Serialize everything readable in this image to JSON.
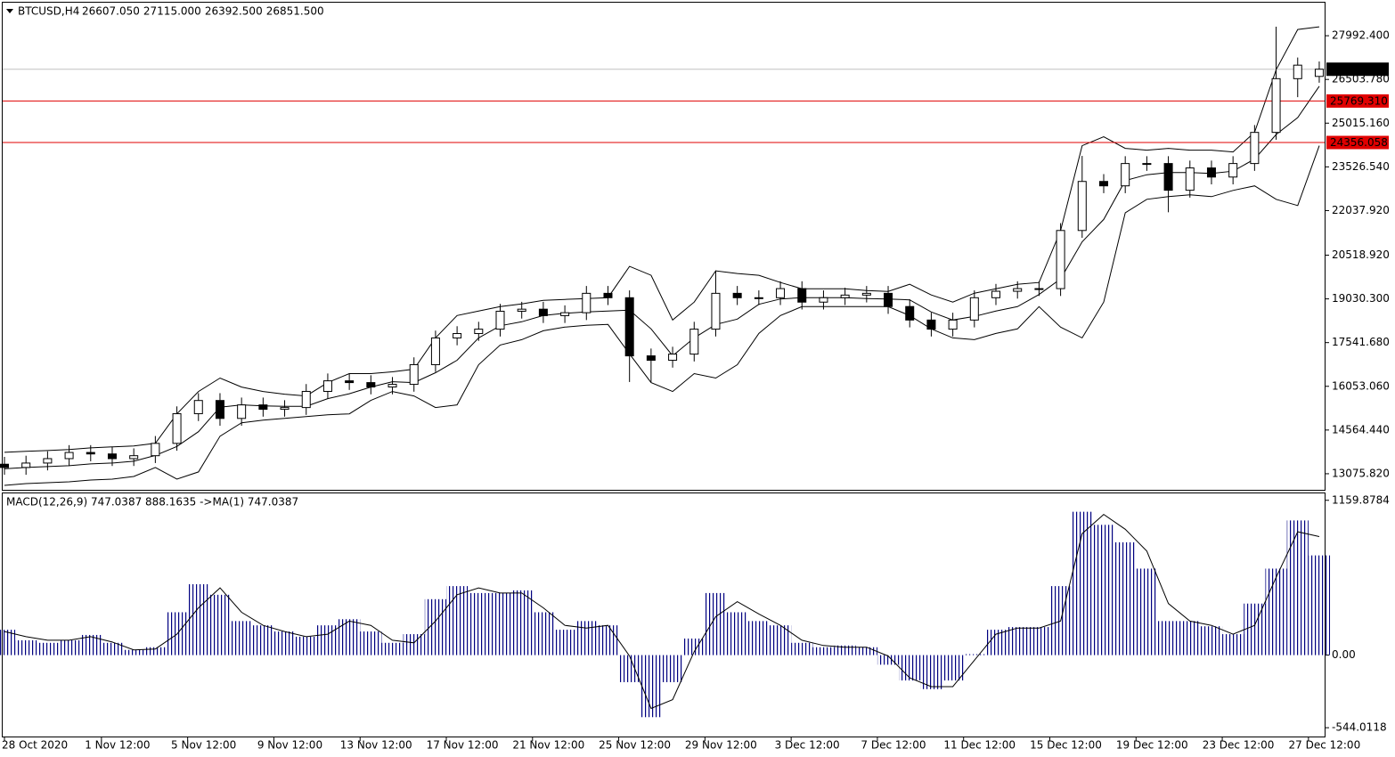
{
  "chart_data": [
    {
      "type": "candlestick",
      "title": "BTCUSD,H4",
      "header_values": [
        "26607.050",
        "27115.000",
        "26392.500",
        "26851.500"
      ],
      "x": [
        0,
        1,
        2,
        3,
        4,
        5,
        6,
        7,
        8,
        9,
        10,
        11,
        12,
        13,
        14,
        15,
        16,
        17,
        18,
        19,
        20,
        21,
        22,
        23,
        24,
        25,
        26,
        27,
        28,
        29,
        30,
        31,
        32,
        33,
        34,
        35,
        36,
        37,
        38,
        39,
        40,
        41,
        42,
        43,
        44,
        45,
        46,
        47,
        48,
        49,
        50,
        51,
        52,
        53,
        54,
        55,
        56,
        57,
        58,
        59,
        60,
        61
      ],
      "open": [
        13400,
        13290,
        13440,
        13590,
        13800,
        13750,
        13590,
        13690,
        14110,
        15120,
        15570,
        14960,
        15420,
        15270,
        15330,
        15880,
        16240,
        16180,
        16030,
        16120,
        16790,
        17700,
        17850,
        18000,
        18610,
        18680,
        18460,
        18560,
        19220,
        19070,
        17090,
        16940,
        17150,
        18000,
        19220,
        19070,
        19070,
        19380,
        18920,
        19070,
        19160,
        19220,
        18770,
        18310,
        18000,
        18310,
        19070,
        19290,
        19380,
        19380,
        21360,
        23030,
        22880,
        23640,
        23640,
        22730,
        23490,
        23180,
        23640,
        24700,
        26530,
        26607.05
      ],
      "high": [
        13650,
        13690,
        13840,
        14050,
        14050,
        14000,
        13940,
        14360,
        15370,
        15820,
        15820,
        15670,
        15670,
        15580,
        16130,
        16490,
        16490,
        16430,
        16370,
        17040,
        17950,
        18100,
        18250,
        18860,
        18930,
        18930,
        18810,
        19470,
        19470,
        19320,
        17340,
        17400,
        18250,
        20000,
        19470,
        19320,
        19630,
        19630,
        19320,
        19410,
        19470,
        19470,
        19020,
        18560,
        18560,
        19320,
        19540,
        19630,
        19630,
        21610,
        23900,
        23280,
        23890,
        23890,
        23890,
        23740,
        23740,
        23890,
        24950,
        28300,
        27250,
        27115
      ],
      "low": [
        13040,
        13040,
        13190,
        13340,
        13500,
        13340,
        13340,
        13440,
        13860,
        14870,
        14710,
        14710,
        15020,
        15020,
        15080,
        15630,
        15930,
        15780,
        15780,
        15870,
        16540,
        17450,
        17600,
        17750,
        18360,
        18210,
        18210,
        18310,
        18820,
        16200,
        16200,
        16690,
        16900,
        17750,
        18820,
        18820,
        18820,
        18670,
        18670,
        18820,
        18910,
        18520,
        18060,
        17750,
        17750,
        18060,
        18820,
        19040,
        19130,
        19130,
        21110,
        22630,
        22630,
        23390,
        21980,
        22480,
        22930,
        22930,
        23390,
        24450,
        25900,
        26392.5
      ],
      "close": [
        13290,
        13440,
        13590,
        13800,
        13750,
        13590,
        13690,
        14110,
        15120,
        15570,
        14960,
        15420,
        15270,
        15330,
        15880,
        16240,
        16180,
        16030,
        16120,
        16790,
        17700,
        17850,
        18000,
        18610,
        18680,
        18460,
        18560,
        19220,
        19070,
        17090,
        16940,
        17150,
        18000,
        19220,
        19070,
        19070,
        19380,
        18920,
        19070,
        19160,
        19220,
        18770,
        18310,
        18000,
        18310,
        19070,
        19290,
        19380,
        19380,
        21360,
        23030,
        22880,
        23640,
        23640,
        22730,
        23490,
        23180,
        23640,
        24700,
        26530,
        26990,
        26851.5
      ],
      "series": [
        {
          "name": "Upper band",
          "color": "#000000",
          "values": [
            13806,
            13837,
            13867,
            13898,
            13958,
            13989,
            14020,
            14111,
            15115,
            15876,
            16333,
            16028,
            15876,
            15785,
            15724,
            16181,
            16485,
            16485,
            16546,
            16637,
            17703,
            18464,
            18616,
            18768,
            18859,
            18981,
            19012,
            19042,
            19073,
            20138,
            19834,
            18312,
            18921,
            19986,
            19894,
            19834,
            19590,
            19377,
            19377,
            19377,
            19316,
            19286,
            19529,
            19164,
            18920,
            19225,
            19377,
            19529,
            19590,
            21356,
            24247,
            24552,
            24156,
            24095,
            24156,
            24095,
            24095,
            24034,
            24704,
            26835,
            28205,
            28296
          ]
        },
        {
          "name": "Middle band",
          "color": "#000000",
          "values": [
            13243,
            13289,
            13319,
            13350,
            13411,
            13441,
            13502,
            13700,
            14004,
            14507,
            15344,
            15420,
            15389,
            15374,
            15374,
            15633,
            15800,
            16029,
            16211,
            16181,
            16516,
            16942,
            17703,
            18114,
            18251,
            18464,
            18540,
            18586,
            18616,
            18647,
            18008,
            17094,
            17703,
            18160,
            18342,
            18845,
            19027,
            19073,
            19073,
            19073,
            19042,
            19027,
            18997,
            18586,
            18312,
            18434,
            18616,
            18768,
            19179,
            19712,
            20975,
            21736,
            23060,
            23258,
            23334,
            23334,
            23304,
            23380,
            23791,
            24628,
            25207,
            26272
          ]
        },
        {
          "name": "Lower band",
          "color": "#000000",
          "values": [
            12680,
            12741,
            12771,
            12802,
            12863,
            12893,
            12984,
            13289,
            12893,
            13137,
            14354,
            14811,
            14902,
            14963,
            15024,
            15085,
            15115,
            15572,
            15876,
            15724,
            15329,
            15420,
            16790,
            17459,
            17642,
            17946,
            18068,
            18129,
            18159,
            17155,
            16181,
            15876,
            16485,
            16333,
            16790,
            17855,
            18464,
            18768,
            18768,
            18768,
            18768,
            18768,
            18464,
            18007,
            17703,
            17642,
            17855,
            18007,
            18768,
            18068,
            17703,
            18920,
            21964,
            22421,
            22512,
            22573,
            22512,
            22725,
            22878,
            22421,
            22208,
            24247
          ]
        }
      ],
      "levels": [
        {
          "value": 26851.5,
          "label": "26851.500",
          "color": "#c0c0c0",
          "label_color": "#000000"
        },
        {
          "value": 25769.31,
          "label": "25769.310",
          "color": "#e00000",
          "label_color": "#e00000"
        },
        {
          "value": 24356.058,
          "label": "24356.058",
          "color": "#e00000",
          "label_color": "#e00000"
        }
      ],
      "xlim": [
        0,
        61.25
      ],
      "ylim": [
        12528,
        29118
      ],
      "yticks": [
        {
          "value": 13075.82,
          "label": "13075.820"
        },
        {
          "value": 14564.44,
          "label": "14564.440"
        },
        {
          "value": 16053.06,
          "label": "16053.060"
        },
        {
          "value": 17541.68,
          "label": "17541.680"
        },
        {
          "value": 19030.3,
          "label": "19030.300"
        },
        {
          "value": 20518.92,
          "label": "20518.920"
        },
        {
          "value": 22037.92,
          "label": "22037.920"
        },
        {
          "value": 23526.54,
          "label": "23526.540"
        },
        {
          "value": 25015.16,
          "label": "25015.160"
        },
        {
          "value": 26503.78,
          "label": "26503.780"
        },
        {
          "value": 27992.4,
          "label": "27992.400"
        }
      ]
    },
    {
      "type": "macd",
      "title": "MACD(12,26,9) 747.0387 888.1635  ->MA(1) 747.0387",
      "x": [
        0,
        1,
        2,
        3,
        4,
        5,
        6,
        7,
        8,
        9,
        10,
        11,
        12,
        13,
        14,
        15,
        16,
        17,
        18,
        19,
        20,
        21,
        22,
        23,
        24,
        25,
        26,
        27,
        28,
        29,
        30,
        31,
        32,
        33,
        34,
        35,
        36,
        37,
        38,
        39,
        40,
        41,
        42,
        43,
        44,
        45,
        46,
        47,
        48,
        49,
        50,
        51,
        52,
        53,
        54,
        55,
        56,
        57,
        58,
        59,
        60,
        61
      ],
      "series": [
        {
          "name": "MACD",
          "color": "#000080",
          "values": [
            190,
            111,
            92,
            111,
            151,
            92,
            39,
            59,
            321,
            531,
            452,
            255,
            223,
            177,
            138,
            223,
            269,
            177,
            92,
            157,
            419,
            517,
            465,
            465,
            485,
            321,
            190,
            255,
            223,
            -203,
            -465,
            -203,
            124,
            465,
            321,
            255,
            223,
            92,
            59,
            72,
            59,
            -72,
            -190,
            -255,
            -190,
            7,
            190,
            210,
            210,
            517,
            1074,
            976,
            845,
            648,
            255,
            255,
            216,
            157,
            386,
            648,
            1009,
            747.0387
          ]
        },
        {
          "name": "Signal",
          "color": "#000000",
          "values": [
            177,
            138,
            111,
            111,
            138,
            98,
            39,
            46,
            157,
            354,
            504,
            321,
            223,
            177,
            138,
            157,
            255,
            223,
            111,
            92,
            255,
            452,
            504,
            465,
            465,
            354,
            223,
            203,
            223,
            -7,
            -400,
            -334,
            26,
            288,
            400,
            308,
            223,
            111,
            72,
            59,
            59,
            -7,
            -170,
            -236,
            -236,
            -39,
            157,
            203,
            203,
            255,
            910,
            1054,
            943,
            779,
            386,
            255,
            223,
            157,
            223,
            583,
            924,
            888.1635
          ]
        }
      ],
      "xlim": [
        0,
        61.25
      ],
      "ylim": [
        -610,
        1205
      ],
      "yticks": [
        {
          "value": 1159.8784,
          "label": "1159.8784"
        },
        {
          "value": 0,
          "label": "0.00"
        },
        {
          "value": -544.0118,
          "label": "-544.0118"
        }
      ],
      "xticks": [
        {
          "value": 0,
          "label": "28 Oct 2020"
        },
        {
          "value": 4.5,
          "label": "1 Nov 12:00"
        },
        {
          "value": 8.5,
          "label": "5 Nov 12:00"
        },
        {
          "value": 12.5,
          "label": "9 Nov 12:00"
        },
        {
          "value": 16.5,
          "label": "13 Nov 12:00"
        },
        {
          "value": 20.5,
          "label": "17 Nov 12:00"
        },
        {
          "value": 24.5,
          "label": "21 Nov 12:00"
        },
        {
          "value": 28.5,
          "label": "25 Nov 12:00"
        },
        {
          "value": 32.5,
          "label": "29 Nov 12:00"
        },
        {
          "value": 36.5,
          "label": "3 Dec 12:00"
        },
        {
          "value": 40.5,
          "label": "7 Dec 12:00"
        },
        {
          "value": 44.5,
          "label": "11 Dec 12:00"
        },
        {
          "value": 48.5,
          "label": "15 Dec 12:00"
        },
        {
          "value": 52.5,
          "label": "19 Dec 12:00"
        },
        {
          "value": 56.5,
          "label": "23 Dec 12:00"
        },
        {
          "value": 60.5,
          "label": "27 Dec 12:00"
        }
      ]
    }
  ]
}
